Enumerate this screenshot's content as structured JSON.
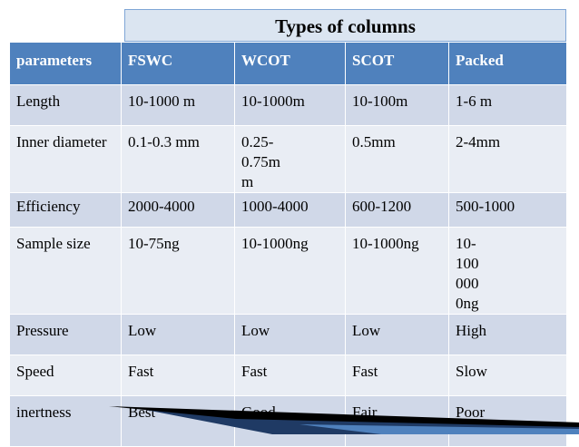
{
  "title": "Types of columns",
  "table": {
    "header": [
      "parameters",
      "FSWC",
      "WCOT",
      "SCOT",
      "Packed"
    ],
    "rows": [
      [
        "Length",
        "10-1000 m",
        "10-1000m",
        "10-100m",
        "1-6 m"
      ],
      [
        "Inner diameter",
        "0.1-0.3 mm",
        "0.25-0.75mm",
        "0.5mm",
        "2-4mm"
      ],
      [
        "Efficiency",
        "2000-4000",
        "1000-4000",
        "600-1200",
        "500-1000"
      ],
      [
        "Sample size",
        "10-75ng",
        "10-1000ng",
        "10-1000ng",
        "10-1000000ng"
      ],
      [
        "Pressure",
        "Low",
        "Low",
        "Low",
        "High"
      ],
      [
        "Speed",
        "Fast",
        "Fast",
        "Fast",
        "Slow"
      ],
      [
        "inertness",
        "Best",
        "Good",
        "Fair",
        "Poor"
      ]
    ]
  }
}
